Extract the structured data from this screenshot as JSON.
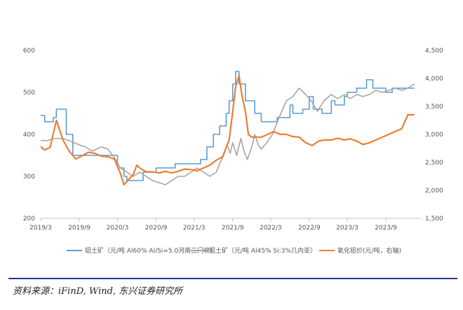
{
  "chart_data": {
    "type": "line",
    "title": "",
    "xlabel": "",
    "ylabel": "",
    "ylim_left": [
      200,
      600
    ],
    "ylim_right": [
      1500,
      4500
    ],
    "x_ticks": [
      "2019/3",
      "2019/9",
      "2020/3",
      "2020/9",
      "2021/3",
      "2021/9",
      "2022/3",
      "2022/9",
      "2023/3",
      "2023/9"
    ],
    "y_ticks_left": [
      "200",
      "300",
      "400",
      "500",
      "600"
    ],
    "y_ticks_right": [
      "1,500",
      "2,000",
      "2,500",
      "3,000",
      "3,500",
      "4,000",
      "4,500"
    ],
    "legend_position": "bottom",
    "grid": false,
    "series": [
      {
        "name": "铝土矿（元/吨 Al60% Al/Si=5.0河南三门峡）",
        "axis": "left",
        "color": "#5b9bd5",
        "step": true,
        "points": [
          [
            "2019-03-01",
            445
          ],
          [
            "2019-03-20",
            430
          ],
          [
            "2019-05-01",
            440
          ],
          [
            "2019-05-15",
            460
          ],
          [
            "2019-07-01",
            400
          ],
          [
            "2019-08-01",
            350
          ],
          [
            "2019-10-15",
            350
          ],
          [
            "2020-01-01",
            350
          ],
          [
            "2020-03-01",
            320
          ],
          [
            "2020-04-01",
            300
          ],
          [
            "2020-04-15",
            290
          ],
          [
            "2020-06-15",
            290
          ],
          [
            "2020-07-01",
            310
          ],
          [
            "2020-09-01",
            320
          ],
          [
            "2020-11-01",
            320
          ],
          [
            "2020-12-01",
            330
          ],
          [
            "2021-03-15",
            330
          ],
          [
            "2021-04-01",
            340
          ],
          [
            "2021-05-01",
            370
          ],
          [
            "2021-06-01",
            400
          ],
          [
            "2021-07-01",
            420
          ],
          [
            "2021-08-01",
            450
          ],
          [
            "2021-08-15",
            480
          ],
          [
            "2021-09-01",
            520
          ],
          [
            "2021-09-15",
            550
          ],
          [
            "2021-10-01",
            520
          ],
          [
            "2021-11-01",
            480
          ],
          [
            "2021-12-15",
            450
          ],
          [
            "2022-01-15",
            430
          ],
          [
            "2022-03-01",
            430
          ],
          [
            "2022-04-01",
            440
          ],
          [
            "2022-06-01",
            470
          ],
          [
            "2022-06-15",
            450
          ],
          [
            "2022-08-01",
            460
          ],
          [
            "2022-09-01",
            490
          ],
          [
            "2022-09-20",
            460
          ],
          [
            "2022-11-01",
            450
          ],
          [
            "2022-12-15",
            480
          ],
          [
            "2023-01-01",
            470
          ],
          [
            "2023-02-15",
            490
          ],
          [
            "2023-03-01",
            500
          ],
          [
            "2023-04-15",
            510
          ],
          [
            "2023-06-01",
            530
          ],
          [
            "2023-07-01",
            510
          ],
          [
            "2023-09-01",
            500
          ],
          [
            "2023-10-01",
            510
          ],
          [
            "2023-11-01",
            510
          ],
          [
            "2024-01-15",
            510
          ]
        ]
      },
      {
        "name": "铝土矿（元/吨 Al45% Si:3%几内亚）",
        "axis": "left",
        "color": "#a5a5a5",
        "step": false,
        "points": [
          [
            "2019-03-01",
            385
          ],
          [
            "2019-04-01",
            385
          ],
          [
            "2019-05-01",
            390
          ],
          [
            "2019-06-15",
            390
          ],
          [
            "2019-07-15",
            385
          ],
          [
            "2019-09-01",
            375
          ],
          [
            "2019-10-01",
            370
          ],
          [
            "2019-11-01",
            360
          ],
          [
            "2019-12-15",
            370
          ],
          [
            "2020-01-15",
            365
          ],
          [
            "2020-02-15",
            345
          ],
          [
            "2020-03-15",
            320
          ],
          [
            "2020-04-15",
            310
          ],
          [
            "2020-05-15",
            300
          ],
          [
            "2020-06-15",
            310
          ],
          [
            "2020-07-15",
            300
          ],
          [
            "2020-08-15",
            290
          ],
          [
            "2020-09-15",
            285
          ],
          [
            "2020-10-15",
            280
          ],
          [
            "2020-11-15",
            290
          ],
          [
            "2020-12-15",
            300
          ],
          [
            "2021-01-15",
            300
          ],
          [
            "2021-02-15",
            310
          ],
          [
            "2021-03-15",
            320
          ],
          [
            "2021-04-15",
            310
          ],
          [
            "2021-05-15",
            300
          ],
          [
            "2021-06-15",
            310
          ],
          [
            "2021-07-01",
            330
          ],
          [
            "2021-07-20",
            350
          ],
          [
            "2021-08-05",
            375
          ],
          [
            "2021-08-20",
            355
          ],
          [
            "2021-09-01",
            380
          ],
          [
            "2021-09-20",
            350
          ],
          [
            "2021-10-10",
            390
          ],
          [
            "2021-10-25",
            360
          ],
          [
            "2021-11-10",
            340
          ],
          [
            "2021-12-01",
            370
          ],
          [
            "2021-12-15",
            400
          ],
          [
            "2022-01-01",
            375
          ],
          [
            "2022-01-15",
            365
          ],
          [
            "2022-02-10",
            380
          ],
          [
            "2022-03-10",
            400
          ],
          [
            "2022-04-10",
            440
          ],
          [
            "2022-05-15",
            480
          ],
          [
            "2022-06-15",
            490
          ],
          [
            "2022-07-15",
            510
          ],
          [
            "2022-08-15",
            495
          ],
          [
            "2022-09-10",
            480
          ],
          [
            "2022-10-10",
            455
          ],
          [
            "2022-11-10",
            480
          ],
          [
            "2022-12-15",
            495
          ],
          [
            "2023-01-15",
            485
          ],
          [
            "2023-02-15",
            495
          ],
          [
            "2023-03-15",
            485
          ],
          [
            "2023-04-15",
            495
          ],
          [
            "2023-05-15",
            490
          ],
          [
            "2023-06-15",
            495
          ],
          [
            "2023-07-15",
            505
          ],
          [
            "2023-08-15",
            500
          ],
          [
            "2023-09-15",
            505
          ],
          [
            "2023-10-15",
            510
          ],
          [
            "2023-11-15",
            505
          ],
          [
            "2023-12-15",
            510
          ],
          [
            "2024-01-15",
            520
          ]
        ]
      },
      {
        "name": "氧化铝价(元/吨，右轴)",
        "axis": "right",
        "color": "#ed7d31",
        "step": false,
        "points": [
          [
            "2019-03-01",
            2780
          ],
          [
            "2019-03-20",
            2720
          ],
          [
            "2019-04-15",
            2770
          ],
          [
            "2019-05-15",
            3250
          ],
          [
            "2019-06-15",
            2900
          ],
          [
            "2019-07-15",
            2700
          ],
          [
            "2019-08-15",
            2560
          ],
          [
            "2019-09-15",
            2620
          ],
          [
            "2019-10-15",
            2680
          ],
          [
            "2019-11-15",
            2660
          ],
          [
            "2019-12-15",
            2610
          ],
          [
            "2020-01-15",
            2600
          ],
          [
            "2020-02-15",
            2560
          ],
          [
            "2020-03-15",
            2300
          ],
          [
            "2020-04-01",
            2100
          ],
          [
            "2020-04-20",
            2180
          ],
          [
            "2020-05-15",
            2280
          ],
          [
            "2020-06-01",
            2450
          ],
          [
            "2020-06-15",
            2400
          ],
          [
            "2020-07-15",
            2330
          ],
          [
            "2020-08-15",
            2330
          ],
          [
            "2020-09-15",
            2310
          ],
          [
            "2020-10-15",
            2340
          ],
          [
            "2020-11-15",
            2310
          ],
          [
            "2020-12-15",
            2340
          ],
          [
            "2021-01-15",
            2380
          ],
          [
            "2021-02-15",
            2370
          ],
          [
            "2021-03-15",
            2350
          ],
          [
            "2021-04-15",
            2400
          ],
          [
            "2021-05-15",
            2450
          ],
          [
            "2021-06-15",
            2540
          ],
          [
            "2021-07-15",
            2600
          ],
          [
            "2021-08-15",
            2900
          ],
          [
            "2021-09-01",
            3400
          ],
          [
            "2021-09-15",
            3850
          ],
          [
            "2021-10-01",
            4050
          ],
          [
            "2021-10-15",
            3700
          ],
          [
            "2021-11-01",
            3400
          ],
          [
            "2021-11-15",
            3000
          ],
          [
            "2021-12-01",
            2950
          ],
          [
            "2022-01-15",
            2950
          ],
          [
            "2022-02-15",
            3000
          ],
          [
            "2022-03-15",
            3050
          ],
          [
            "2022-04-15",
            3000
          ],
          [
            "2022-05-15",
            3000
          ],
          [
            "2022-06-15",
            2960
          ],
          [
            "2022-07-15",
            2950
          ],
          [
            "2022-08-15",
            2850
          ],
          [
            "2022-09-15",
            2800
          ],
          [
            "2022-10-15",
            2880
          ],
          [
            "2022-11-15",
            2900
          ],
          [
            "2022-12-15",
            2900
          ],
          [
            "2023-01-15",
            2930
          ],
          [
            "2023-02-15",
            2900
          ],
          [
            "2023-03-15",
            2920
          ],
          [
            "2023-04-15",
            2880
          ],
          [
            "2023-05-15",
            2820
          ],
          [
            "2023-06-15",
            2850
          ],
          [
            "2023-07-15",
            2900
          ],
          [
            "2023-08-15",
            2950
          ],
          [
            "2023-09-15",
            3000
          ],
          [
            "2023-10-15",
            3050
          ],
          [
            "2023-11-15",
            3100
          ],
          [
            "2023-12-15",
            3350
          ],
          [
            "2024-01-15",
            3350
          ]
        ]
      }
    ]
  },
  "legend": [
    {
      "label": "铝土矿（元/吨 Al60% Al/Si=5.0河南三门峡）",
      "color": "#5b9bd5"
    },
    {
      "label": "铝土矿（元/吨 Al45% Si:3%几内亚）",
      "color": "#a5a5a5"
    },
    {
      "label": "氧化铝价(元/吨，右轴)",
      "color": "#ed7d31"
    }
  ],
  "source": "资料来源：iFinD, Wind, 东兴证券研究所"
}
